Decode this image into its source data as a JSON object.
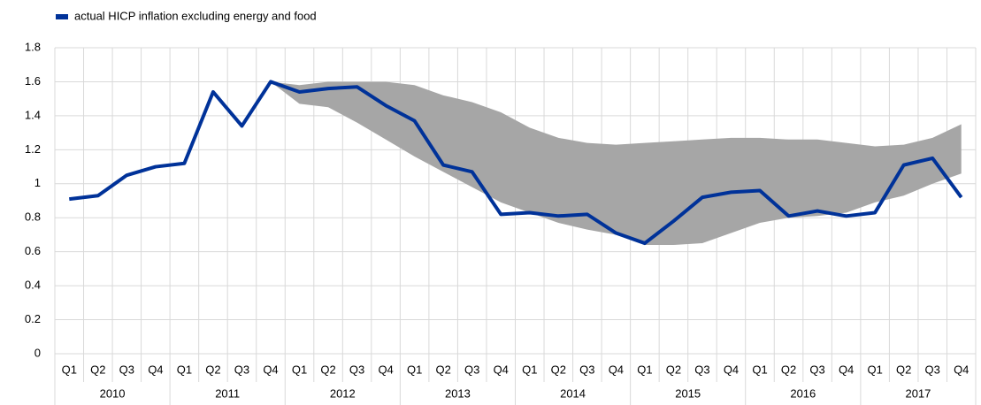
{
  "chart_data": {
    "type": "line",
    "categories": [
      "Q1",
      "Q2",
      "Q3",
      "Q4",
      "Q1",
      "Q2",
      "Q3",
      "Q4",
      "Q1",
      "Q2",
      "Q3",
      "Q4",
      "Q1",
      "Q2",
      "Q3",
      "Q4",
      "Q1",
      "Q2",
      "Q3",
      "Q4",
      "Q1",
      "Q2",
      "Q3",
      "Q4",
      "Q1",
      "Q2",
      "Q3",
      "Q4",
      "Q1",
      "Q2",
      "Q3",
      "Q4"
    ],
    "years": [
      "2010",
      "2011",
      "2012",
      "2013",
      "2014",
      "2015",
      "2016",
      "2017"
    ],
    "series": [
      {
        "name": "actual HICP inflation excluding energy and food",
        "color": "#003299",
        "values": [
          0.91,
          0.93,
          1.05,
          1.1,
          1.12,
          1.54,
          1.34,
          1.6,
          1.54,
          1.56,
          1.57,
          1.46,
          1.37,
          1.11,
          1.07,
          0.82,
          0.83,
          0.81,
          0.82,
          0.71,
          0.65,
          0.78,
          0.92,
          0.95,
          0.96,
          0.81,
          0.84,
          0.81,
          0.83,
          1.11,
          1.15,
          0.92
        ]
      }
    ],
    "range": {
      "color": "#a6a6a6",
      "upper": [
        null,
        null,
        null,
        null,
        null,
        null,
        null,
        1.6,
        1.58,
        1.6,
        1.6,
        1.6,
        1.58,
        1.52,
        1.48,
        1.42,
        1.33,
        1.27,
        1.24,
        1.23,
        1.24,
        1.25,
        1.26,
        1.27,
        1.27,
        1.26,
        1.26,
        1.24,
        1.22,
        1.23,
        1.27,
        1.35
      ],
      "lower": [
        null,
        null,
        null,
        null,
        null,
        null,
        null,
        1.6,
        1.47,
        1.45,
        1.36,
        1.26,
        1.16,
        1.07,
        0.98,
        0.89,
        0.83,
        0.77,
        0.73,
        0.7,
        0.64,
        0.64,
        0.65,
        0.71,
        0.77,
        0.8,
        0.81,
        0.83,
        0.89,
        0.93,
        1.0,
        1.06
      ]
    },
    "ylim": [
      0,
      1.8
    ],
    "yticks": [
      0,
      0.2,
      0.4,
      0.6,
      0.8,
      1,
      1.2,
      1.4,
      1.6,
      1.8
    ],
    "grid": true,
    "legend": "top-left"
  }
}
